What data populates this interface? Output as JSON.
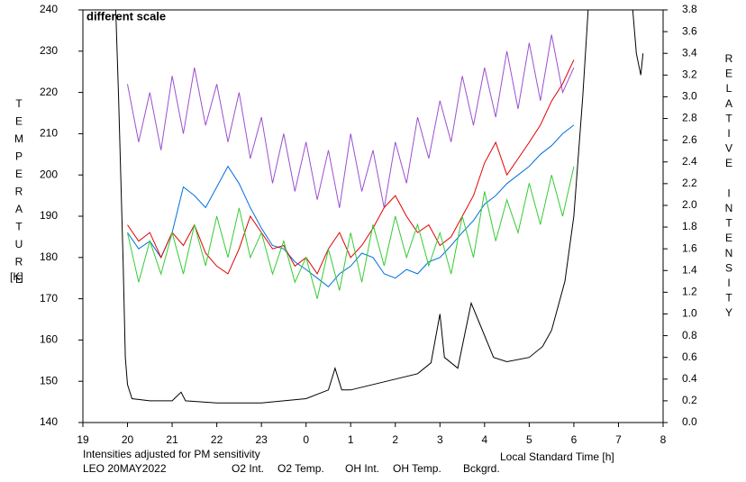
{
  "chart_data": {
    "type": "line",
    "y_label": "TEMPERATURE",
    "y_unit": "[K]",
    "y2_label": "RELATIVE INTENSITY",
    "x_label": "Local Standard Time [h]",
    "annotation": "different scale",
    "note": "Intensities adjusted for PM sensitivity",
    "station": "LEO 20MAY2022",
    "xlim": [
      19,
      32
    ],
    "xticks": [
      19,
      20,
      21,
      22,
      23,
      {
        "value": 24,
        "label": "0"
      },
      {
        "value": 25,
        "label": "1"
      },
      {
        "value": 26,
        "label": "2"
      },
      {
        "value": 27,
        "label": "3"
      },
      {
        "value": 28,
        "label": "4"
      },
      {
        "value": 29,
        "label": "5"
      },
      {
        "value": 30,
        "label": "6"
      },
      {
        "value": 31,
        "label": "7"
      },
      {
        "value": 32,
        "label": "8"
      }
    ],
    "ylim": [
      140,
      240
    ],
    "yticks": [
      140,
      150,
      160,
      170,
      180,
      190,
      200,
      210,
      220,
      230,
      240
    ],
    "y2lim": [
      0,
      3.8
    ],
    "y2ticks": [
      {
        "value": 0,
        "label": "0.0"
      },
      0.2,
      0.4,
      0.6,
      0.8,
      {
        "value": 1,
        "label": "1.0"
      },
      1.2,
      1.4,
      1.6,
      1.8,
      {
        "value": 2,
        "label": "2.0"
      },
      2.2,
      2.4,
      2.6,
      2.8,
      {
        "value": 3,
        "label": "3.0"
      },
      3.2,
      3.4,
      3.6,
      3.8
    ],
    "x": [
      20,
      20.25,
      20.5,
      20.75,
      21,
      21.25,
      21.5,
      21.75,
      22,
      22.25,
      22.5,
      22.75,
      23,
      23.25,
      23.5,
      23.75,
      24,
      24.25,
      24.5,
      24.75,
      25,
      25.25,
      25.5,
      25.75,
      26,
      26.25,
      26.5,
      26.75,
      27,
      27.25,
      27.5,
      27.75,
      28,
      28.25,
      28.5,
      28.75,
      29,
      29.25,
      29.5,
      29.75,
      30
    ],
    "series": [
      {
        "name": "O2 Int.",
        "color": "#0070e0",
        "axis": "y2",
        "values": [
          1.75,
          1.6,
          1.67,
          1.52,
          1.75,
          2.17,
          2.09,
          1.98,
          2.17,
          2.36,
          2.2,
          1.98,
          1.79,
          1.63,
          1.6,
          1.48,
          1.41,
          1.33,
          1.25,
          1.37,
          1.44,
          1.56,
          1.52,
          1.37,
          1.33,
          1.41,
          1.37,
          1.48,
          1.52,
          1.63,
          1.75,
          1.86,
          2.01,
          2.09,
          2.2,
          2.28,
          2.36,
          2.47,
          2.55,
          2.66,
          2.74
        ]
      },
      {
        "name": "O2 Temp.",
        "color": "#9b4fd0",
        "values": [
          222,
          208,
          220,
          206,
          224,
          210,
          226,
          212,
          222,
          208,
          220,
          204,
          214,
          198,
          210,
          196,
          208,
          194,
          206,
          192,
          210,
          196,
          206,
          192,
          208,
          198,
          214,
          204,
          218,
          208,
          224,
          212,
          226,
          214,
          230,
          216,
          232,
          218,
          234,
          220,
          226
        ]
      },
      {
        "name": "OH Int.",
        "color": "#e00000",
        "axis": "y2",
        "values": [
          1.82,
          1.67,
          1.75,
          1.52,
          1.75,
          1.63,
          1.82,
          1.56,
          1.44,
          1.37,
          1.6,
          1.9,
          1.75,
          1.6,
          1.63,
          1.44,
          1.52,
          1.37,
          1.6,
          1.75,
          1.52,
          1.63,
          1.79,
          1.98,
          2.09,
          1.9,
          1.75,
          1.82,
          1.63,
          1.71,
          1.9,
          2.09,
          2.39,
          2.58,
          2.28,
          2.43,
          2.58,
          2.74,
          2.96,
          3.12,
          3.34
        ]
      },
      {
        "name": "OH Temp.",
        "color": "#33cc33",
        "values": [
          186,
          174,
          184,
          176,
          186,
          176,
          188,
          178,
          190,
          180,
          192,
          180,
          186,
          176,
          184,
          174,
          180,
          170,
          182,
          172,
          186,
          174,
          188,
          178,
          190,
          180,
          188,
          178,
          186,
          176,
          190,
          180,
          196,
          184,
          194,
          186,
          198,
          188,
          200,
          190,
          202
        ]
      },
      {
        "name": "Bckgrd.",
        "color": "#000000",
        "axis": "y2",
        "x": [
          19.72,
          19.8,
          19.9,
          19.95,
          20,
          20.1,
          20.5,
          21,
          21.2,
          21.3,
          22,
          23,
          23.5,
          24,
          24.5,
          24.65,
          24.8,
          25,
          25.5,
          26,
          26.5,
          26.8,
          27,
          27.1,
          27.4,
          27.6,
          27.7,
          27.9,
          28.2,
          28.5,
          29,
          29.3,
          29.5,
          29.8,
          30,
          30.2,
          30.35,
          30.9,
          31.28,
          31.4,
          31.5,
          31.55
        ],
        "values": [
          4.0,
          3.0,
          1.5,
          0.6,
          0.35,
          0.22,
          0.2,
          0.2,
          0.28,
          0.2,
          0.18,
          0.18,
          0.2,
          0.22,
          0.3,
          0.5,
          0.3,
          0.3,
          0.35,
          0.4,
          0.45,
          0.55,
          1.0,
          0.6,
          0.5,
          0.9,
          1.1,
          0.9,
          0.6,
          0.56,
          0.6,
          0.7,
          0.85,
          1.3,
          1.9,
          3.0,
          4.0,
          null,
          4.0,
          3.4,
          3.2,
          3.4
        ]
      }
    ]
  }
}
